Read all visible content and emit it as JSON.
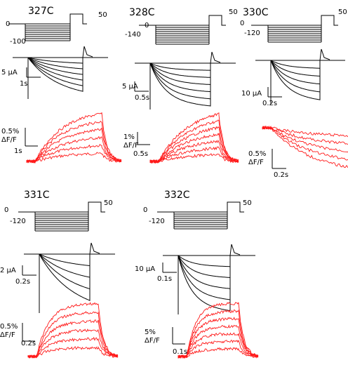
{
  "panels": [
    {
      "id": "327C",
      "title": "327C",
      "v_hold": "0",
      "v_step": "-100",
      "v_end": "50",
      "current_scale": "5 µA",
      "current_time": "1s",
      "fluor_scale": "0.5%",
      "fluor_unit": "ΔF/F",
      "fluor_time": "1s"
    },
    {
      "id": "328C",
      "title": "328C",
      "v_hold": "0",
      "v_step": "-140",
      "v_end": "50",
      "current_scale": "5 µA",
      "current_time": "0.5s",
      "fluor_scale": "1%",
      "fluor_unit": "ΔF/F",
      "fluor_time": "0.5s"
    },
    {
      "id": "330C",
      "title": "330C",
      "v_hold": "0",
      "v_step": "-120",
      "v_end": "50",
      "current_scale": "10 µA",
      "current_time": "0.2s",
      "fluor_scale": "0.5%",
      "fluor_unit": "ΔF/F",
      "fluor_time": "0.2s"
    },
    {
      "id": "331C",
      "title": "331C",
      "v_hold": "0",
      "v_step": "-120",
      "v_end": "50",
      "current_scale": "2 µA",
      "current_time": "0.2s",
      "fluor_scale": "0.5%",
      "fluor_unit": "ΔF/F",
      "fluor_time": "0.2s"
    },
    {
      "id": "332C",
      "title": "332C",
      "v_hold": "0",
      "v_step": "-120",
      "v_end": "50",
      "current_scale": "10 µA",
      "current_time": "0.1s",
      "fluor_scale": "5%",
      "fluor_unit": "ΔF/F",
      "fluor_time": "0.1s"
    }
  ],
  "colors": {
    "current_trace": "#000000",
    "fluorescence_trace": "#ff1a1a"
  }
}
